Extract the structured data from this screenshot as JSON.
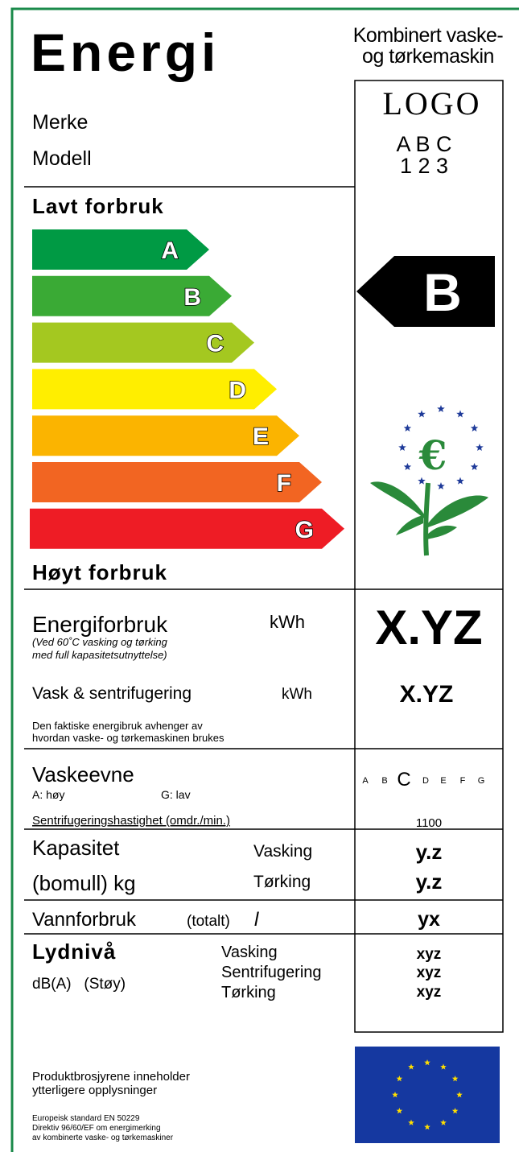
{
  "header": {
    "title": "Energi",
    "appliance_type": [
      "Kombinert vaske-",
      "og tørkemaskin"
    ],
    "brand_label": "Merke",
    "model_label": "Modell",
    "logo": "LOGO",
    "brand_value": "A B C",
    "model_value": "1 2 3"
  },
  "scale": {
    "top_label": "Lavt forbruk",
    "bottom_label": "Høyt forbruk",
    "classes": [
      "A",
      "B",
      "C",
      "D",
      "E",
      "F",
      "G"
    ],
    "rating": "B"
  },
  "energy": {
    "label": "Energiforbruk",
    "unit": "kWh",
    "note": [
      "(Ved 60˚C vasking og tørking",
      "med full kapasitetsutnyttelse)"
    ],
    "value": "X.YZ",
    "wash_label": "Vask & sentrifugering",
    "wash_unit": "kWh",
    "wash_value": "X.YZ",
    "disclaimer": [
      "Den faktiske energibruk avhenger av",
      "hvordan vaske- og tørkemaskinen brukes"
    ]
  },
  "washing": {
    "label": "Vaskeevne",
    "high": "A: høy",
    "low": "G: lav",
    "scale": [
      "A",
      "B",
      "C",
      "D",
      "E",
      "F",
      "G"
    ],
    "spin_label": "Sentrifugeringshastighet (omdr./min.)",
    "spin_value": "1100"
  },
  "capacity": {
    "label": "Kapasitet",
    "sublabel": "(bomull) kg",
    "wash_label": "Vasking",
    "wash_value": "y.z",
    "dry_label": "Tørking",
    "dry_value": "y.z"
  },
  "water": {
    "label": "Vannforbruk",
    "sublabel": "(totalt)",
    "unit": "l",
    "value": "yx"
  },
  "noise": {
    "label": "Lydnivå",
    "sublabel": "dB(A)   (Støy)",
    "rows": [
      {
        "label": "Vasking",
        "value": "xyz"
      },
      {
        "label": "Sentrifugering",
        "value": "xyz"
      },
      {
        "label": "Tørking",
        "value": "xyz"
      }
    ]
  },
  "footer": {
    "info": [
      "Produktbrosjyrene inneholder",
      "ytterligere opplysninger"
    ],
    "standard": [
      "Europeisk standard EN 50229",
      "Direktiv 96/60/EF om energimerking",
      "av kombinerte vaske- og tørkemaskiner"
    ]
  }
}
